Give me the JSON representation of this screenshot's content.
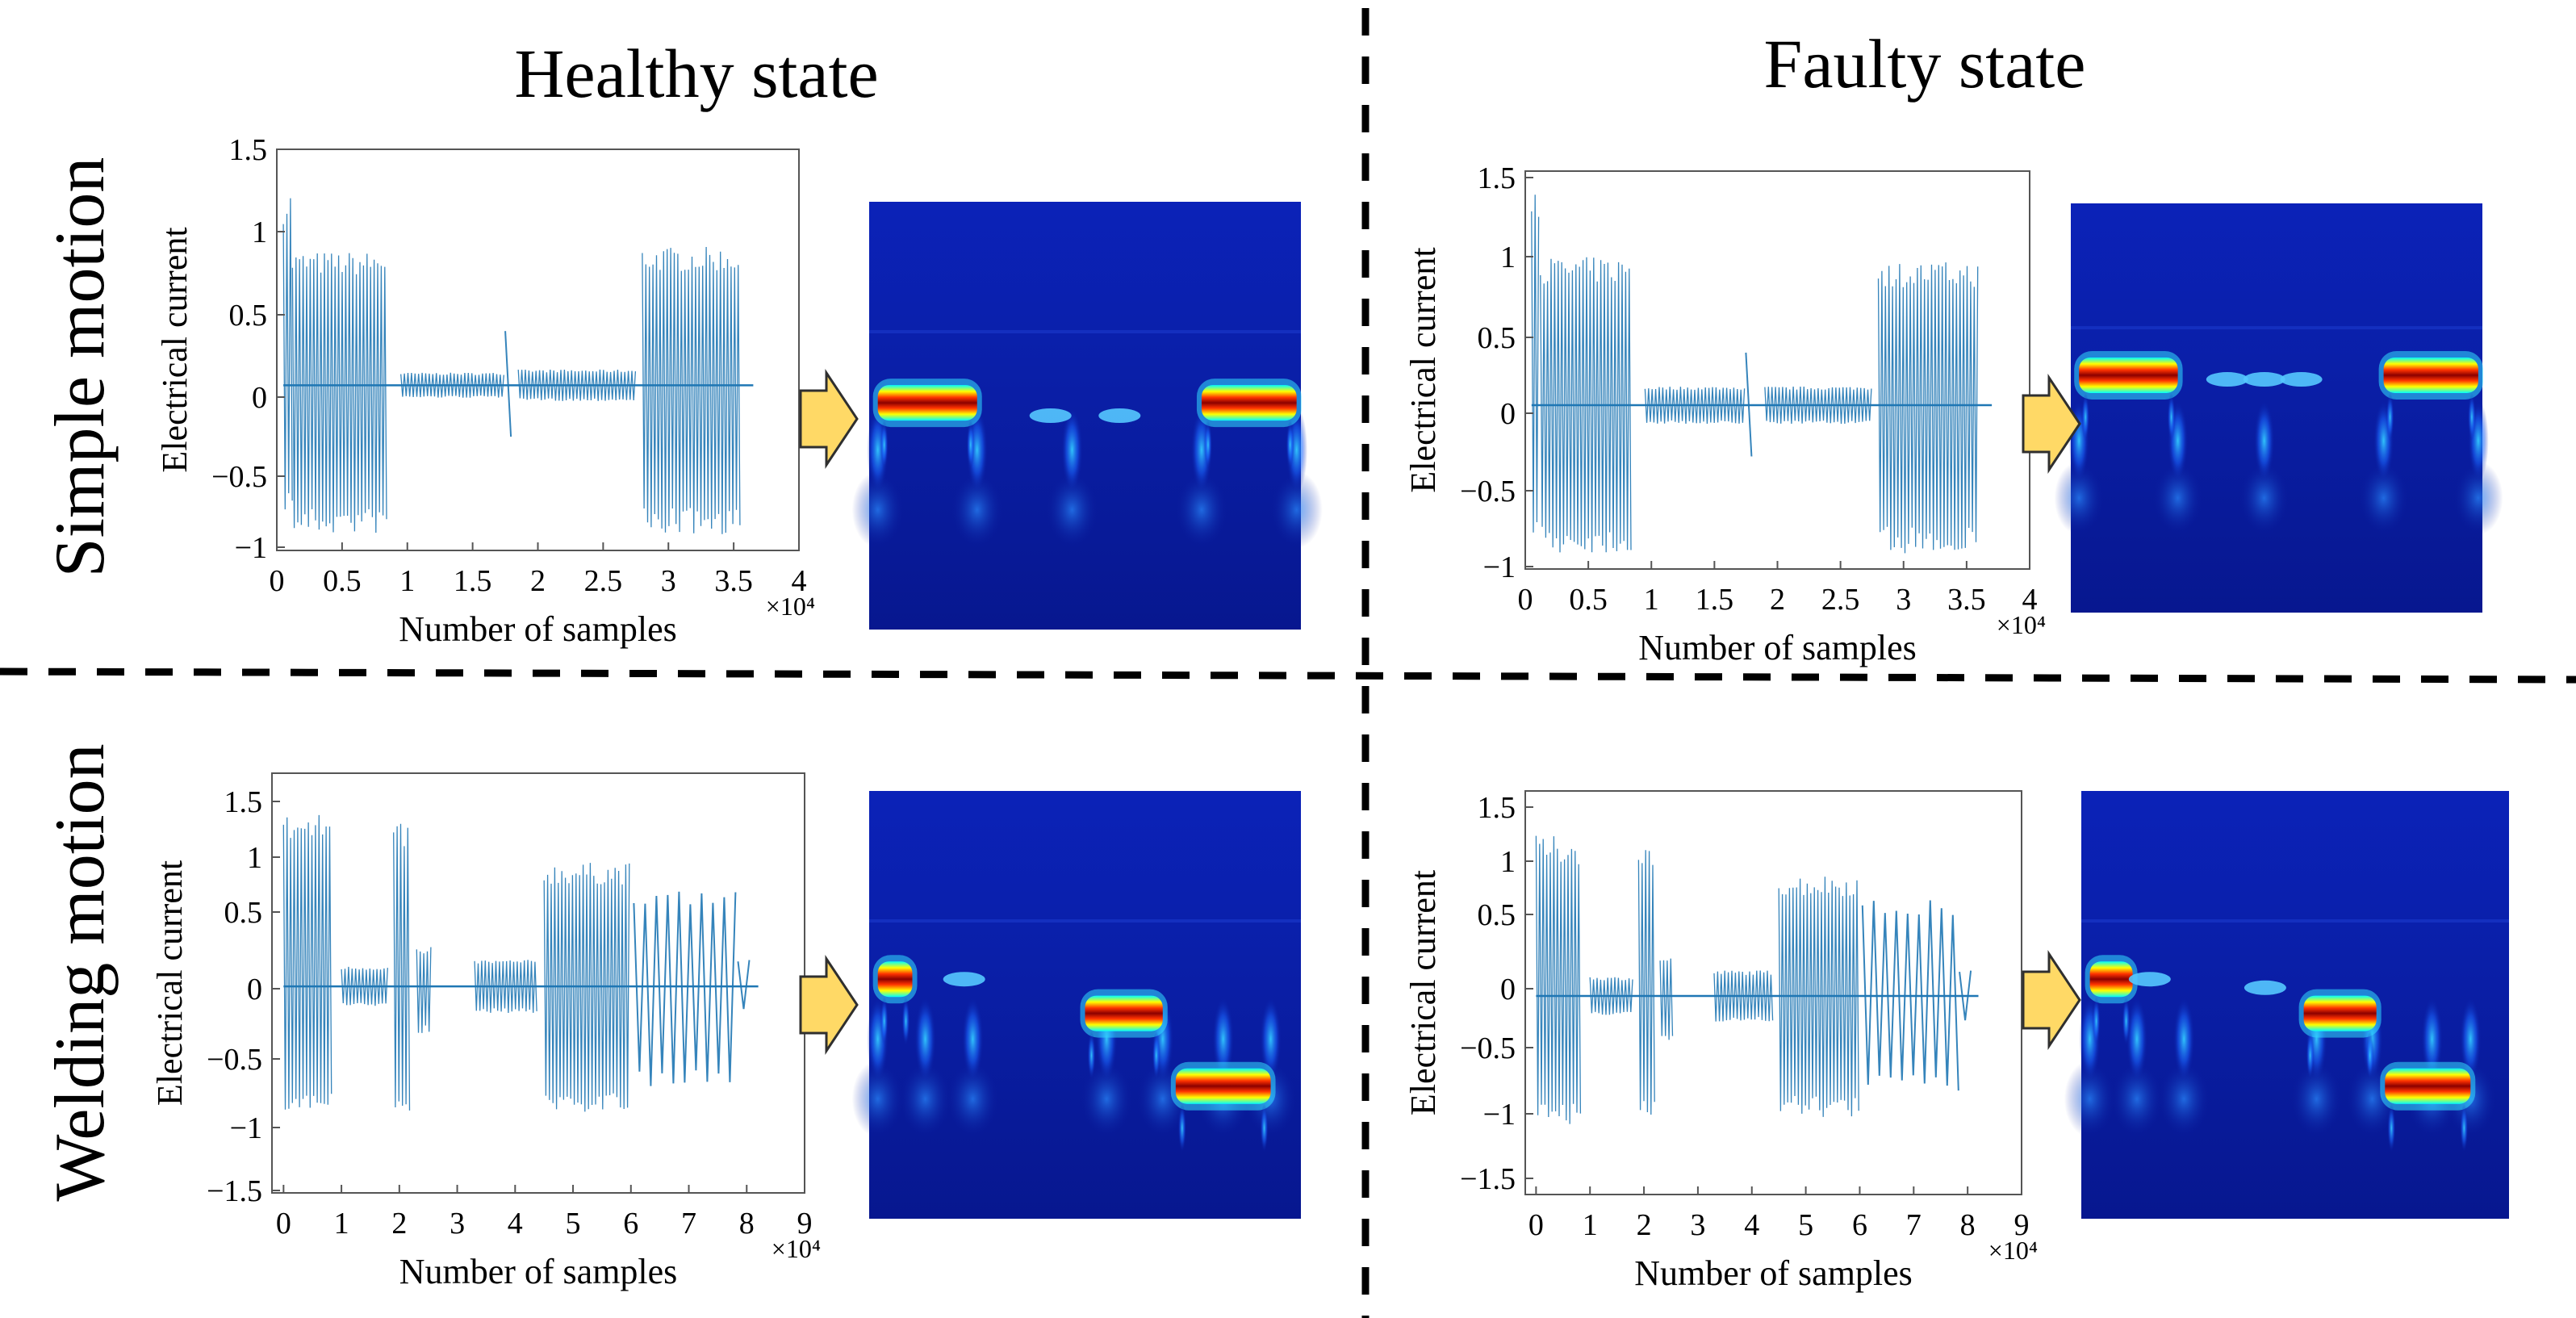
{
  "header": {
    "healthy_title": "Healthy state",
    "faulty_title": "Faulty state"
  },
  "row_labels": {
    "simple": "Simple motion",
    "welding": "Welding motion"
  },
  "axis_common": {
    "ylabel": "Electrical current",
    "xlabel": "Number of samples",
    "x_multiplier": "×10⁴"
  },
  "colors": {
    "signal": "#1f77b4",
    "arrow_fill": "#ffd966",
    "arrow_stroke": "#2f2f2f",
    "scalogram_bg": "#0a1a9e",
    "divider": "#000000"
  },
  "chart_data": [
    {
      "id": "simple-healthy",
      "type": "line",
      "title": "",
      "xlabel": "Number of samples",
      "ylabel": "Electrical current",
      "x_tick_labels": [
        "0",
        "0.5",
        "1",
        "1.5",
        "2",
        "2.5",
        "3",
        "3.5",
        "4"
      ],
      "y_tick_labels": [
        "1.5",
        "1",
        "0.5",
        "0",
        "−0.5",
        "−1"
      ],
      "xlim": [
        0,
        4
      ],
      "ylim": [
        -1.05,
        1.5
      ],
      "x_unit_multiplier": "×10⁴",
      "segments": [
        {
          "x0": 0.05,
          "x1": 0.12,
          "amp_top": 1.25,
          "amp_bot": -0.8,
          "density": "dense"
        },
        {
          "x0": 0.12,
          "x1": 0.85,
          "amp_top": 0.85,
          "amp_bot": -0.95,
          "density": "dense"
        },
        {
          "x0": 0.95,
          "x1": 1.75,
          "amp_top": 0.08,
          "amp_bot": -0.08,
          "density": "dense"
        },
        {
          "x0": 1.75,
          "x1": 1.8,
          "amp_top": 0.35,
          "amp_bot": -0.35,
          "density": "sparse"
        },
        {
          "x0": 1.85,
          "x1": 2.75,
          "amp_top": 0.1,
          "amp_bot": -0.1,
          "density": "dense"
        },
        {
          "x0": 2.8,
          "x1": 3.55,
          "amp_top": 0.88,
          "amp_bot": -0.95,
          "density": "dense"
        }
      ]
    },
    {
      "id": "simple-faulty",
      "type": "line",
      "title": "",
      "xlabel": "Number of samples",
      "ylabel": "Electrical current",
      "x_tick_labels": [
        "0",
        "0.5",
        "1",
        "1.5",
        "2",
        "2.5",
        "3",
        "3.5",
        "4"
      ],
      "y_tick_labels": [
        "1.5",
        "1",
        "0.5",
        "0",
        "−0.5",
        "−1"
      ],
      "xlim": [
        0,
        4
      ],
      "ylim": [
        -1.05,
        1.5
      ],
      "x_unit_multiplier": "×10⁴",
      "segments": [
        {
          "x0": 0.05,
          "x1": 0.12,
          "amp_top": 1.35,
          "amp_bot": -0.9,
          "density": "dense"
        },
        {
          "x0": 0.12,
          "x1": 0.85,
          "amp_top": 0.95,
          "amp_bot": -0.95,
          "density": "dense"
        },
        {
          "x0": 0.95,
          "x1": 1.75,
          "amp_top": 0.12,
          "amp_bot": -0.12,
          "density": "dense"
        },
        {
          "x0": 1.75,
          "x1": 1.82,
          "amp_top": 0.35,
          "amp_bot": -0.35,
          "density": "sparse"
        },
        {
          "x0": 1.9,
          "x1": 2.75,
          "amp_top": 0.12,
          "amp_bot": -0.12,
          "density": "dense"
        },
        {
          "x0": 2.8,
          "x1": 3.6,
          "amp_top": 0.92,
          "amp_bot": -0.95,
          "density": "dense"
        }
      ]
    },
    {
      "id": "welding-healthy",
      "type": "line",
      "title": "",
      "xlabel": "Number of samples",
      "ylabel": "Electrical current",
      "x_tick_labels": [
        "0",
        "1",
        "2",
        "3",
        "4",
        "5",
        "6",
        "7",
        "8",
        "9"
      ],
      "y_tick_labels": [
        "1.5",
        "1",
        "0.5",
        "0",
        "−0.5",
        "−1",
        "−1.5"
      ],
      "xlim": [
        -0.2,
        9
      ],
      "ylim": [
        -1.55,
        1.6
      ],
      "x_unit_multiplier": "×10⁴",
      "segments": [
        {
          "x0": 0.0,
          "x1": 0.85,
          "amp_top": 1.3,
          "amp_bot": -0.95,
          "density": "dense"
        },
        {
          "x0": 1.0,
          "x1": 1.8,
          "amp_top": 0.15,
          "amp_bot": -0.15,
          "density": "dense"
        },
        {
          "x0": 1.9,
          "x1": 2.2,
          "amp_top": 1.25,
          "amp_bot": -0.95,
          "density": "dense"
        },
        {
          "x0": 2.3,
          "x1": 2.55,
          "amp_top": 0.3,
          "amp_bot": -0.35,
          "density": "dense"
        },
        {
          "x0": 3.3,
          "x1": 4.4,
          "amp_top": 0.2,
          "amp_bot": -0.2,
          "density": "dense"
        },
        {
          "x0": 4.5,
          "x1": 6.0,
          "amp_top": 0.93,
          "amp_bot": -0.95,
          "density": "dense"
        },
        {
          "x0": 6.05,
          "x1": 7.85,
          "amp_top": 0.75,
          "amp_bot": -0.75,
          "density": "sparse"
        },
        {
          "x0": 7.85,
          "x1": 8.1,
          "amp_top": 0.2,
          "amp_bot": -0.2,
          "density": "sparse"
        }
      ]
    },
    {
      "id": "welding-faulty",
      "type": "line",
      "title": "",
      "xlabel": "Number of samples",
      "ylabel": "Electrical current",
      "x_tick_labels": [
        "0",
        "1",
        "2",
        "3",
        "4",
        "5",
        "6",
        "7",
        "8",
        "9"
      ],
      "y_tick_labels": [
        "1.5",
        "1",
        "0.5",
        "0",
        "−0.5",
        "−1",
        "−1.5"
      ],
      "xlim": [
        -0.2,
        9
      ],
      "ylim": [
        -1.55,
        1.6
      ],
      "x_unit_multiplier": "×10⁴",
      "segments": [
        {
          "x0": 0.0,
          "x1": 0.85,
          "amp_top": 1.25,
          "amp_bot": -1.0,
          "density": "dense"
        },
        {
          "x0": 1.0,
          "x1": 1.8,
          "amp_top": 0.15,
          "amp_bot": -0.15,
          "density": "dense"
        },
        {
          "x0": 1.9,
          "x1": 2.2,
          "amp_top": 1.2,
          "amp_bot": -0.95,
          "density": "dense"
        },
        {
          "x0": 2.3,
          "x1": 2.55,
          "amp_top": 0.3,
          "amp_bot": -0.35,
          "density": "dense"
        },
        {
          "x0": 3.3,
          "x1": 4.4,
          "amp_top": 0.2,
          "amp_bot": -0.2,
          "density": "dense"
        },
        {
          "x0": 4.5,
          "x1": 6.0,
          "amp_top": 0.95,
          "amp_bot": -0.95,
          "density": "dense"
        },
        {
          "x0": 6.05,
          "x1": 7.85,
          "amp_top": 0.75,
          "amp_bot": -0.75,
          "density": "sparse"
        },
        {
          "x0": 7.85,
          "x1": 8.1,
          "amp_top": 0.2,
          "amp_bot": -0.2,
          "density": "sparse"
        }
      ]
    }
  ]
}
